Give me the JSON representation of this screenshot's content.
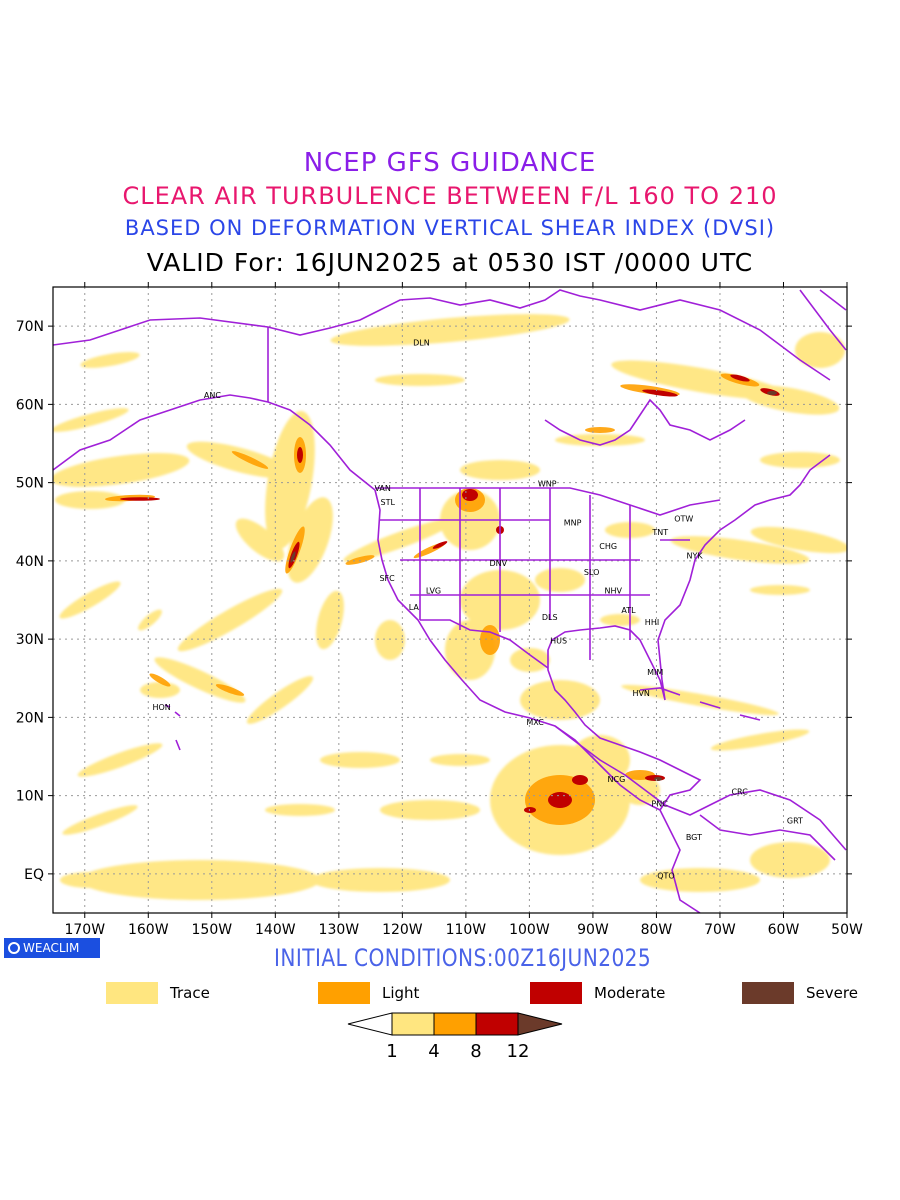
{
  "titles": {
    "line1": "NCEP GFS GUIDANCE",
    "line2": "CLEAR AIR TURBULENCE BETWEEN F/L 160 TO 210",
    "line3": "BASED ON DEFORMATION VERTICAL SHEAR INDEX (DVSI)",
    "line4": "VALID For: 16JUN2025 at 0530 IST /0000 UTC"
  },
  "map": {
    "lon_range": [
      -175,
      -50
    ],
    "lat_range": [
      -5,
      75
    ],
    "lon_ticks": [
      "170W",
      "160W",
      "150W",
      "140W",
      "130W",
      "120W",
      "110W",
      "100W",
      "90W",
      "80W",
      "70W",
      "60W",
      "50W"
    ],
    "lat_ticks": [
      "70N",
      "60N",
      "50N",
      "40N",
      "30N",
      "20N",
      "10N",
      "EQ"
    ],
    "grid": true,
    "border_color": "#a020d8",
    "stations": [
      {
        "code": "ANC",
        "lon": -149.9,
        "lat": 61.2
      },
      {
        "code": "DLN",
        "lon": -117.0,
        "lat": 67.9
      },
      {
        "code": "VAN",
        "lon": -123.1,
        "lat": 49.3
      },
      {
        "code": "STL",
        "lon": -122.3,
        "lat": 47.5
      },
      {
        "code": "WNP",
        "lon": -97.2,
        "lat": 49.9
      },
      {
        "code": "MNP",
        "lon": -93.2,
        "lat": 44.9
      },
      {
        "code": "TNT",
        "lon": -79.4,
        "lat": 43.7
      },
      {
        "code": "OTW",
        "lon": -75.7,
        "lat": 45.4
      },
      {
        "code": "CHG",
        "lon": -87.6,
        "lat": 41.9
      },
      {
        "code": "NYK",
        "lon": -74.0,
        "lat": 40.7
      },
      {
        "code": "DNV",
        "lon": -104.9,
        "lat": 39.7
      },
      {
        "code": "SFC",
        "lon": -122.4,
        "lat": 37.8
      },
      {
        "code": "LVG",
        "lon": -115.1,
        "lat": 36.2
      },
      {
        "code": "SLO",
        "lon": -90.2,
        "lat": 38.6
      },
      {
        "code": "NHV",
        "lon": -86.8,
        "lat": 36.2
      },
      {
        "code": "LA",
        "lon": -118.2,
        "lat": 34.1
      },
      {
        "code": "ATL",
        "lon": -84.4,
        "lat": 33.7
      },
      {
        "code": "DLS",
        "lon": -96.8,
        "lat": 32.8
      },
      {
        "code": "HHI",
        "lon": -80.7,
        "lat": 32.2
      },
      {
        "code": "HUS",
        "lon": -95.4,
        "lat": 29.8
      },
      {
        "code": "MIM",
        "lon": -80.2,
        "lat": 25.8
      },
      {
        "code": "HVN",
        "lon": -82.4,
        "lat": 23.1
      },
      {
        "code": "HON",
        "lon": -157.9,
        "lat": 21.3
      },
      {
        "code": "MXC",
        "lon": -99.1,
        "lat": 19.4
      },
      {
        "code": "NCG",
        "lon": -86.3,
        "lat": 12.1
      },
      {
        "code": "CRC",
        "lon": -66.9,
        "lat": 10.5
      },
      {
        "code": "PNC",
        "lon": -79.5,
        "lat": 9.0
      },
      {
        "code": "GRT",
        "lon": -58.2,
        "lat": 6.8
      },
      {
        "code": "BGT",
        "lon": -74.1,
        "lat": 4.7
      },
      {
        "code": "QTO",
        "lon": -78.5,
        "lat": -0.2
      }
    ]
  },
  "footer": {
    "logo_text": "WEACLIM",
    "initial_conditions": "INITIAL CONDITIONS:00Z16JUN2025"
  },
  "legend": [
    {
      "label": "Trace",
      "color": "#ffe680"
    },
    {
      "label": "Light",
      "color": "#ffa000"
    },
    {
      "label": "Moderate",
      "color": "#c00000"
    },
    {
      "label": "Severe",
      "color": "#6b3a2a"
    }
  ],
  "colorbar": {
    "ticks": [
      "1",
      "4",
      "8",
      "12"
    ],
    "colors": [
      "#ffffff",
      "#ffe680",
      "#ffa000",
      "#c00000",
      "#6b3a2a"
    ]
  }
}
